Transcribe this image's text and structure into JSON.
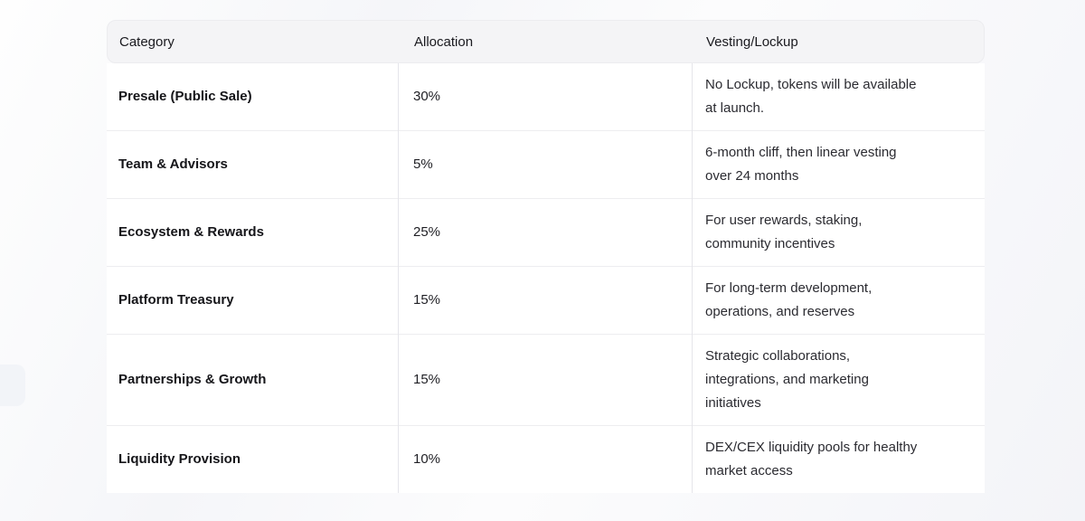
{
  "colors": {
    "header_bg": "#f4f4f6",
    "body_bg": "#ffffff",
    "row_divider": "#ededf0",
    "column_divider": "#e5e5ea",
    "category_text": "#151519",
    "body_text": "#2b2b31"
  },
  "table": {
    "columns": [
      {
        "label": "Category"
      },
      {
        "label": "Allocation"
      },
      {
        "label": "Vesting/Lockup"
      }
    ],
    "rows": [
      {
        "category": "Presale (Public Sale)",
        "allocation": "30%",
        "vesting": "No Lockup, tokens will be available\nat launch."
      },
      {
        "category": "Team & Advisors",
        "allocation": "5%",
        "vesting": "6-month cliff, then linear vesting\nover 24 months"
      },
      {
        "category": "Ecosystem & Rewards",
        "allocation": "25%",
        "vesting": "For user rewards, staking,\ncommunity incentives"
      },
      {
        "category": "Platform Treasury",
        "allocation": "15%",
        "vesting": "For long-term development,\noperations, and reserves"
      },
      {
        "category": "Partnerships & Growth",
        "allocation": "15%",
        "vesting": "Strategic collaborations,\nintegrations, and marketing\ninitiatives"
      },
      {
        "category": "Liquidity Provision",
        "allocation": "10%",
        "vesting": "DEX/CEX liquidity pools for healthy\nmarket access"
      }
    ]
  }
}
